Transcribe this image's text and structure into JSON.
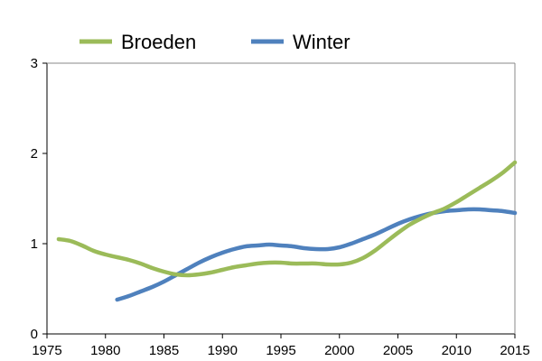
{
  "chart_data": {
    "type": "line",
    "xlim": [
      1975,
      2015
    ],
    "ylim": [
      0,
      3
    ],
    "x_ticks": [
      "1975",
      "1980",
      "1985",
      "1990",
      "1995",
      "2000",
      "2005",
      "2010",
      "2015"
    ],
    "y_ticks": [
      "0",
      "1",
      "2",
      "3"
    ],
    "grid": false,
    "legend_position": "top",
    "series": [
      {
        "name": "Broeden",
        "color": "#9bbb59",
        "x": [
          1976,
          1977,
          1978,
          1979,
          1980,
          1981,
          1982,
          1983,
          1984,
          1985,
          1986,
          1987,
          1988,
          1989,
          1990,
          1991,
          1992,
          1993,
          1994,
          1995,
          1996,
          1997,
          1998,
          1999,
          2000,
          2001,
          2002,
          2003,
          2004,
          2005,
          2006,
          2007,
          2008,
          2009,
          2010,
          2011,
          2012,
          2013,
          2014,
          2015
        ],
        "y": [
          1.05,
          1.03,
          0.98,
          0.92,
          0.88,
          0.85,
          0.82,
          0.78,
          0.73,
          0.69,
          0.66,
          0.65,
          0.66,
          0.68,
          0.71,
          0.74,
          0.76,
          0.78,
          0.79,
          0.79,
          0.78,
          0.78,
          0.78,
          0.77,
          0.77,
          0.79,
          0.84,
          0.92,
          1.02,
          1.12,
          1.21,
          1.28,
          1.34,
          1.39,
          1.46,
          1.54,
          1.62,
          1.7,
          1.79,
          1.9
        ]
      },
      {
        "name": "Winter",
        "color": "#4f81bd",
        "x": [
          1981,
          1982,
          1983,
          1984,
          1985,
          1986,
          1987,
          1988,
          1989,
          1990,
          1991,
          1992,
          1993,
          1994,
          1995,
          1996,
          1997,
          1998,
          1999,
          2000,
          2001,
          2002,
          2003,
          2004,
          2005,
          2006,
          2007,
          2008,
          2009,
          2010,
          2011,
          2012,
          2013,
          2014,
          2015
        ],
        "y": [
          0.38,
          0.42,
          0.47,
          0.52,
          0.58,
          0.65,
          0.72,
          0.79,
          0.85,
          0.9,
          0.94,
          0.97,
          0.98,
          0.99,
          0.98,
          0.97,
          0.95,
          0.94,
          0.94,
          0.96,
          1.0,
          1.05,
          1.1,
          1.16,
          1.22,
          1.27,
          1.31,
          1.34,
          1.36,
          1.37,
          1.38,
          1.38,
          1.37,
          1.36,
          1.34
        ]
      }
    ]
  }
}
